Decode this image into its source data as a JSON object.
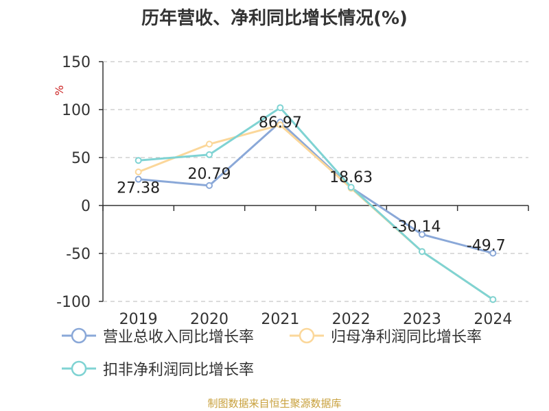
{
  "chart_data": {
    "type": "line",
    "title": "历年营收、净利同比增长情况(%)",
    "ylabel": "%",
    "categories": [
      "2019",
      "2020",
      "2021",
      "2022",
      "2023",
      "2024"
    ],
    "ylim": [
      -100,
      150
    ],
    "yticks": [
      150,
      100,
      50,
      0,
      -50,
      -100
    ],
    "grid": true,
    "legend_position": "bottom-left",
    "series": [
      {
        "name": "营业总收入同比增长率",
        "color": "#8aa8d8",
        "values": [
          27.38,
          20.79,
          86.97,
          18.63,
          -30.14,
          -49.7
        ],
        "labels": [
          "27.38",
          "20.79",
          "86.97",
          "18.63",
          "-30.14",
          "-49.7"
        ]
      },
      {
        "name": "归母净利润同比增长率",
        "color": "#fbd79a",
        "values": [
          35,
          64,
          84,
          18,
          -48,
          -98
        ]
      },
      {
        "name": "扣非净利润同比增长率",
        "color": "#7fd3d3",
        "values": [
          47,
          53,
          102,
          19,
          -48,
          -98
        ]
      }
    ]
  },
  "source": "制图数据来自恒生聚源数据库"
}
